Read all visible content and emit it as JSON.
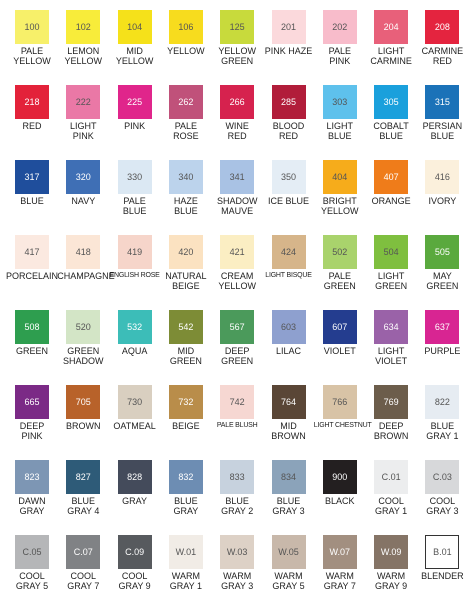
{
  "swatches": [
    {
      "code": "100",
      "name": [
        "PALE",
        "YELLOW"
      ],
      "color": "#f7f06a"
    },
    {
      "code": "102",
      "name": [
        "LEMON",
        "YELLOW"
      ],
      "color": "#f8ec3a"
    },
    {
      "code": "104",
      "name": [
        "MID",
        "YELLOW"
      ],
      "color": "#f5e11a"
    },
    {
      "code": "106",
      "name": [
        "YELLOW"
      ],
      "color": "#f7dc1e"
    },
    {
      "code": "125",
      "name": [
        "YELLOW",
        "GREEN"
      ],
      "color": "#c8da3c"
    },
    {
      "code": "201",
      "name": [
        "PINK HAZE"
      ],
      "color": "#fbd9dc"
    },
    {
      "code": "202",
      "name": [
        "PALE",
        "PINK"
      ],
      "color": "#f8bccb"
    },
    {
      "code": "204",
      "name": [
        "LIGHT",
        "CARMINE"
      ],
      "color": "#e8607a"
    },
    {
      "code": "208",
      "name": [
        "CARMINE",
        "RED"
      ],
      "color": "#e4243f"
    },
    {
      "code": "218",
      "name": [
        "RED"
      ],
      "color": "#e3223a"
    },
    {
      "code": "222",
      "name": [
        "LIGHT",
        "PINK"
      ],
      "color": "#ea78a6"
    },
    {
      "code": "225",
      "name": [
        "PINK"
      ],
      "color": "#e0258b"
    },
    {
      "code": "262",
      "name": [
        "PALE",
        "ROSE"
      ],
      "color": "#c0517a"
    },
    {
      "code": "266",
      "name": [
        "WINE",
        "RED"
      ],
      "color": "#d6224e"
    },
    {
      "code": "285",
      "name": [
        "BLOOD",
        "RED"
      ],
      "color": "#b11d3a"
    },
    {
      "code": "303",
      "name": [
        "LIGHT",
        "BLUE"
      ],
      "color": "#5ec1ec"
    },
    {
      "code": "305",
      "name": [
        "COBALT",
        "BLUE"
      ],
      "color": "#1aa0dc"
    },
    {
      "code": "315",
      "name": [
        "PERSIAN",
        "BLUE"
      ],
      "color": "#1b72b8"
    },
    {
      "code": "317",
      "name": [
        "BLUE"
      ],
      "color": "#1f4e9c"
    },
    {
      "code": "320",
      "name": [
        "NAVY"
      ],
      "color": "#3f6fb5"
    },
    {
      "code": "330",
      "name": [
        "PALE",
        "BLUE"
      ],
      "color": "#dbe8f3"
    },
    {
      "code": "340",
      "name": [
        "HAZE",
        "BLUE"
      ],
      "color": "#bcd3ec"
    },
    {
      "code": "341",
      "name": [
        "SHADOW",
        "MAUVE"
      ],
      "color": "#a9c2e4"
    },
    {
      "code": "350",
      "name": [
        "ICE BLUE"
      ],
      "color": "#e4edf5"
    },
    {
      "code": "404",
      "name": [
        "BRIGHT",
        "YELLOW"
      ],
      "color": "#f6ac1b"
    },
    {
      "code": "407",
      "name": [
        "ORANGE"
      ],
      "color": "#ef7c1a"
    },
    {
      "code": "416",
      "name": [
        "IVORY"
      ],
      "color": "#fbf0dc"
    },
    {
      "code": "417",
      "name": [
        "PORCELAIN"
      ],
      "color": "#fbe9e0"
    },
    {
      "code": "418",
      "name": [
        "CHAMPAGNE"
      ],
      "color": "#fbe6d6"
    },
    {
      "code": "419",
      "name": [
        "ENGLISH ROSE"
      ],
      "color": "#f6d5ca"
    },
    {
      "code": "420",
      "name": [
        "NATURAL",
        "BEIGE"
      ],
      "color": "#fbe2c1"
    },
    {
      "code": "421",
      "name": [
        "CREAM",
        "YELLOW"
      ],
      "color": "#fbeec3"
    },
    {
      "code": "424",
      "name": [
        "LIGHT BISQUE"
      ],
      "color": "#d6b58a"
    },
    {
      "code": "502",
      "name": [
        "PALE",
        "GREEN"
      ],
      "color": "#a9d36c"
    },
    {
      "code": "504",
      "name": [
        "LIGHT",
        "GREEN"
      ],
      "color": "#7fbf3f"
    },
    {
      "code": "505",
      "name": [
        "MAY",
        "GREEN"
      ],
      "color": "#5aa93e"
    },
    {
      "code": "508",
      "name": [
        "GREEN"
      ],
      "color": "#2e9e4f"
    },
    {
      "code": "520",
      "name": [
        "GREEN",
        "SHADOW"
      ],
      "color": "#d3e5c6"
    },
    {
      "code": "532",
      "name": [
        "AQUA"
      ],
      "color": "#3cbdb8"
    },
    {
      "code": "542",
      "name": [
        "MID",
        "GREEN"
      ],
      "color": "#7d8c36"
    },
    {
      "code": "567",
      "name": [
        "DEEP",
        "GREEN"
      ],
      "color": "#4b9a5b"
    },
    {
      "code": "603",
      "name": [
        "LILAC"
      ],
      "color": "#8ea0cf"
    },
    {
      "code": "607",
      "name": [
        "VIOLET"
      ],
      "color": "#243d8f"
    },
    {
      "code": "634",
      "name": [
        "LIGHT",
        "VIOLET"
      ],
      "color": "#9a62a8"
    },
    {
      "code": "637",
      "name": [
        "PURPLE"
      ],
      "color": "#d82592"
    },
    {
      "code": "665",
      "name": [
        "DEEP",
        "PINK"
      ],
      "color": "#7b2a86"
    },
    {
      "code": "705",
      "name": [
        "BROWN"
      ],
      "color": "#b8622a"
    },
    {
      "code": "730",
      "name": [
        "OATMEAL"
      ],
      "color": "#d9cfc0"
    },
    {
      "code": "732",
      "name": [
        "BEIGE"
      ],
      "color": "#b98d4a"
    },
    {
      "code": "742",
      "name": [
        "PALE BLUSH"
      ],
      "color": "#f6d7d2"
    },
    {
      "code": "764",
      "name": [
        "MID",
        "BROWN"
      ],
      "color": "#5a4636"
    },
    {
      "code": "766",
      "name": [
        "LIGHT CHESTNUT"
      ],
      "color": "#d8c3a6"
    },
    {
      "code": "769",
      "name": [
        "DEEP",
        "BROWN"
      ],
      "color": "#6c5d4b"
    },
    {
      "code": "822",
      "name": [
        "BLUE",
        "GRAY 1"
      ],
      "color": "#e6ecf2"
    },
    {
      "code": "823",
      "name": [
        "DAWN",
        "GRAY"
      ],
      "color": "#7d96b4"
    },
    {
      "code": "827",
      "name": [
        "BLUE",
        "GRAY 4"
      ],
      "color": "#2e5b78"
    },
    {
      "code": "828",
      "name": [
        "GRAY"
      ],
      "color": "#444b5b"
    },
    {
      "code": "832",
      "name": [
        "BLUE",
        "GRAY"
      ],
      "color": "#6d8db3"
    },
    {
      "code": "833",
      "name": [
        "BLUE",
        "GRAY 2"
      ],
      "color": "#c7d2de"
    },
    {
      "code": "834",
      "name": [
        "BLUE",
        "GRAY 3"
      ],
      "color": "#8ba3ba"
    },
    {
      "code": "900",
      "name": [
        "BLACK"
      ],
      "color": "#231f20"
    },
    {
      "code": "C.01",
      "name": [
        "COOL",
        "GRAY 1"
      ],
      "color": "#ecedee"
    },
    {
      "code": "C.03",
      "name": [
        "COOL",
        "GRAY 3"
      ],
      "color": "#d7d8da"
    },
    {
      "code": "C.05",
      "name": [
        "COOL",
        "GRAY 5"
      ],
      "color": "#b5b6b8"
    },
    {
      "code": "C.07",
      "name": [
        "COOL",
        "GRAY 7"
      ],
      "color": "#808285"
    },
    {
      "code": "C.09",
      "name": [
        "COOL",
        "GRAY 9"
      ],
      "color": "#575a5e"
    },
    {
      "code": "W.01",
      "name": [
        "WARM",
        "GRAY 1"
      ],
      "color": "#f1ece6"
    },
    {
      "code": "W.03",
      "name": [
        "WARM",
        "GRAY 3"
      ],
      "color": "#ddd1c6"
    },
    {
      "code": "W.05",
      "name": [
        "WARM",
        "GRAY 5"
      ],
      "color": "#c8b8aa"
    },
    {
      "code": "W.07",
      "name": [
        "WARM",
        "GRAY 7"
      ],
      "color": "#a28f80"
    },
    {
      "code": "W.09",
      "name": [
        "WARM",
        "GRAY 9"
      ],
      "color": "#857466"
    },
    {
      "code": "B.01",
      "name": [
        "BLENDER"
      ],
      "color": "#ffffff"
    }
  ]
}
